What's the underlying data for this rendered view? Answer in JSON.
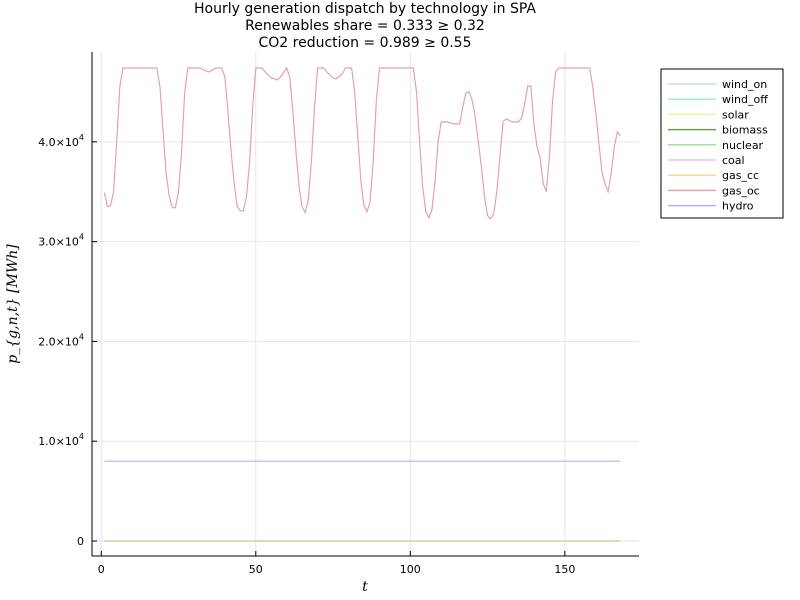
{
  "chart_data": {
    "type": "line",
    "title_lines": [
      "Hourly generation dispatch by technology in SPA",
      "Renewables share = 0.333 ≥ 0.32",
      "CO2 reduction = 0.989 ≥ 0.55"
    ],
    "xlabel": "t",
    "ylabel": "p_{g,n,t} [MWh]",
    "xlim": [
      -3,
      174
    ],
    "ylim": [
      -1500,
      49000
    ],
    "x_ticks": [
      0,
      50,
      100,
      150
    ],
    "x_tick_labels": [
      "0",
      "50",
      "100",
      "150"
    ],
    "y_ticks": [
      0,
      10000,
      20000,
      30000,
      40000
    ],
    "y_tick_labels": [
      {
        "base": "0",
        "exp": ""
      },
      {
        "base": "1.0×10",
        "exp": "4"
      },
      {
        "base": "2.0×10",
        "exp": "4"
      },
      {
        "base": "3.0×10",
        "exp": "4"
      },
      {
        "base": "4.0×10",
        "exp": "4"
      }
    ],
    "grid": true,
    "legend_position": "outside top-right",
    "series": [
      {
        "name": "wind_on",
        "color": "#c8ddf0",
        "constant": 0
      },
      {
        "name": "wind_off",
        "color": "#9fe6ee",
        "constant": 0
      },
      {
        "name": "solar",
        "color": "#f1ec9d",
        "constant": 0
      },
      {
        "name": "biomass",
        "color": "#6f9e4e",
        "constant": 0
      },
      {
        "name": "nuclear",
        "color": "#9de39f",
        "constant": 0
      },
      {
        "name": "coal",
        "color": "#e7c9ec",
        "constant": 0
      },
      {
        "name": "gas_cc",
        "color": "#f7d8a5",
        "constant": 0
      },
      {
        "name": "gas_oc",
        "color": "#e0a3a9",
        "points": [
          [
            1,
            34900
          ],
          [
            2,
            33500
          ],
          [
            3,
            33600
          ],
          [
            4,
            35000
          ],
          [
            5,
            40000
          ],
          [
            6,
            45500
          ],
          [
            7,
            47400
          ],
          [
            8,
            47400
          ],
          [
            12,
            47400
          ],
          [
            16,
            47400
          ],
          [
            18,
            47400
          ],
          [
            19,
            45500
          ],
          [
            20,
            41000
          ],
          [
            21,
            36800
          ],
          [
            22,
            34500
          ],
          [
            23,
            33400
          ],
          [
            24,
            33400
          ],
          [
            25,
            35000
          ],
          [
            26,
            39000
          ],
          [
            27,
            45000
          ],
          [
            28,
            47400
          ],
          [
            30,
            47400
          ],
          [
            32,
            47400
          ],
          [
            33,
            47200
          ],
          [
            35,
            47000
          ],
          [
            37,
            47400
          ],
          [
            39,
            47400
          ],
          [
            40,
            46500
          ],
          [
            41,
            43000
          ],
          [
            42,
            39000
          ],
          [
            43,
            35800
          ],
          [
            44,
            33500
          ],
          [
            45,
            33100
          ],
          [
            46,
            33100
          ],
          [
            47,
            34500
          ],
          [
            48,
            38000
          ],
          [
            49,
            43500
          ],
          [
            50,
            47400
          ],
          [
            52,
            47400
          ],
          [
            53,
            47000
          ],
          [
            55,
            46400
          ],
          [
            57,
            46200
          ],
          [
            58,
            46500
          ],
          [
            60,
            47400
          ],
          [
            61,
            46500
          ],
          [
            62,
            43000
          ],
          [
            63,
            39000
          ],
          [
            64,
            35500
          ],
          [
            65,
            33500
          ],
          [
            66,
            32900
          ],
          [
            67,
            34200
          ],
          [
            68,
            38000
          ],
          [
            69,
            43500
          ],
          [
            70,
            47400
          ],
          [
            72,
            47400
          ],
          [
            73,
            47000
          ],
          [
            75,
            46400
          ],
          [
            76,
            46300
          ],
          [
            78,
            46800
          ],
          [
            79,
            47400
          ],
          [
            81,
            47400
          ],
          [
            82,
            45000
          ],
          [
            83,
            40500
          ],
          [
            84,
            36000
          ],
          [
            85,
            33600
          ],
          [
            86,
            33000
          ],
          [
            87,
            34000
          ],
          [
            88,
            38000
          ],
          [
            89,
            44000
          ],
          [
            90,
            47400
          ],
          [
            95,
            47400
          ],
          [
            100,
            47400
          ],
          [
            101,
            47400
          ],
          [
            102,
            45000
          ],
          [
            103,
            40000
          ],
          [
            104,
            35500
          ],
          [
            105,
            33000
          ],
          [
            106,
            32400
          ],
          [
            107,
            33200
          ],
          [
            108,
            36000
          ],
          [
            109,
            40000
          ],
          [
            110,
            42000
          ],
          [
            112,
            42000
          ],
          [
            114,
            41800
          ],
          [
            116,
            41800
          ],
          [
            117,
            43500
          ],
          [
            118,
            44900
          ],
          [
            119,
            45000
          ],
          [
            120,
            44200
          ],
          [
            121,
            42500
          ],
          [
            122,
            40000
          ],
          [
            123,
            37500
          ],
          [
            124,
            34500
          ],
          [
            125,
            32600
          ],
          [
            126,
            32300
          ],
          [
            127,
            32800
          ],
          [
            128,
            35000
          ],
          [
            129,
            38500
          ],
          [
            130,
            42000
          ],
          [
            131,
            42300
          ],
          [
            133,
            42000
          ],
          [
            135,
            42000
          ],
          [
            136,
            42400
          ],
          [
            137,
            43800
          ],
          [
            138,
            45600
          ],
          [
            139,
            45600
          ],
          [
            140,
            41800
          ],
          [
            141,
            39500
          ],
          [
            142,
            38400
          ],
          [
            143,
            35800
          ],
          [
            144,
            35000
          ],
          [
            145,
            38500
          ],
          [
            146,
            44000
          ],
          [
            147,
            47000
          ],
          [
            148,
            47400
          ],
          [
            155,
            47400
          ],
          [
            158,
            47400
          ],
          [
            159,
            45600
          ],
          [
            160,
            43000
          ],
          [
            161,
            40000
          ],
          [
            162,
            37000
          ],
          [
            163,
            35800
          ],
          [
            164,
            35000
          ],
          [
            165,
            36800
          ],
          [
            166,
            39500
          ],
          [
            167,
            41000
          ],
          [
            168,
            40600
          ]
        ]
      },
      {
        "name": "hydro",
        "color": "#b4b4ee",
        "constant": 8000
      }
    ]
  }
}
